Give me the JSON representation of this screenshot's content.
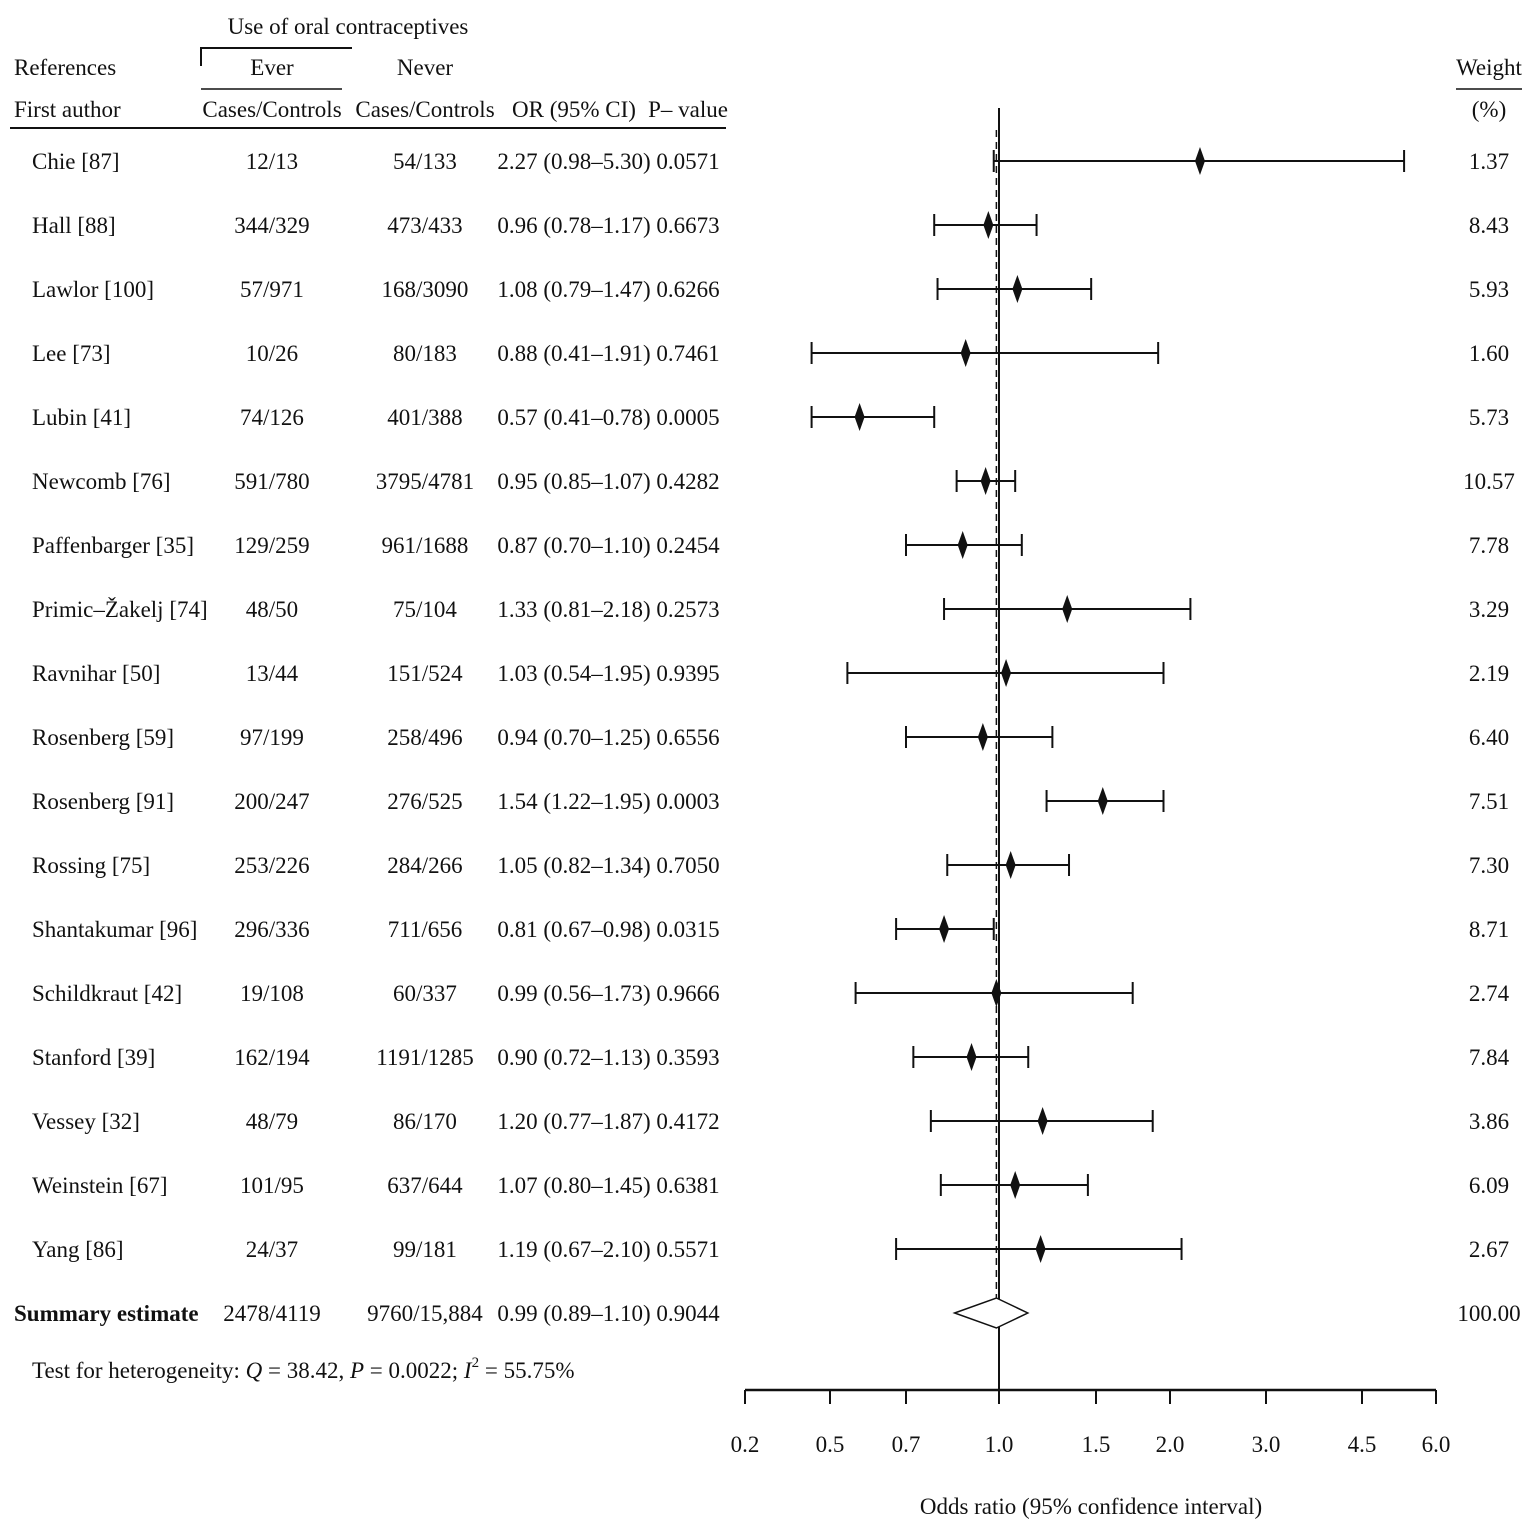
{
  "header": {
    "group_label": "Use of oral contraceptives",
    "references": "References",
    "first_author": "First author",
    "ever": "Ever",
    "never": "Never",
    "cases_controls_ever": "Cases/Controls",
    "cases_controls_never": "Cases/Controls",
    "or_ci": "OR (95% CI)",
    "p_value": "P– value",
    "weight": "Weight",
    "weight_unit": "(%)"
  },
  "heterogeneity": {
    "prefix": "Test for heterogeneity:",
    "q_sym": "Q",
    "q_val": " = 38.42,",
    "p_sym": "P",
    "p_val": " = 0.0022;",
    "i_sym": "I",
    "i_sup": "2",
    "i_val": " = 55.75%"
  },
  "chart_data": {
    "type": "forest",
    "xlabel": "Odds ratio (95% confidence interval)",
    "x_scale": "log",
    "x_ticks": [
      {
        "value": 0.2,
        "label": "0.2"
      },
      {
        "value": 0.5,
        "label": "0.5"
      },
      {
        "value": 0.7,
        "label": "0.7"
      },
      {
        "value": 1.0,
        "label": "1.0"
      },
      {
        "value": 1.5,
        "label": "1.5"
      },
      {
        "value": 2.0,
        "label": "2.0"
      },
      {
        "value": 3.0,
        "label": "3.0"
      },
      {
        "value": 4.5,
        "label": "4.5"
      },
      {
        "value": 6.0,
        "label": "6.0"
      }
    ],
    "xlim": [
      0.2,
      6.0
    ],
    "reference_line": 1.0,
    "summary_line": 0.99,
    "studies": [
      {
        "author": "Chie [87]",
        "ever": "12/13",
        "never": "54/133",
        "or_text": "2.27 (0.98–5.30)",
        "p": "0.0571",
        "weight": "1.37",
        "or": 2.27,
        "lo": 0.98,
        "hi": 5.3
      },
      {
        "author": "Hall [88]",
        "ever": "344/329",
        "never": "473/433",
        "or_text": "0.96 (0.78–1.17)",
        "p": "0.6673",
        "weight": "8.43",
        "or": 0.96,
        "lo": 0.78,
        "hi": 1.17
      },
      {
        "author": "Lawlor [100]",
        "ever": "57/971",
        "never": "168/3090",
        "or_text": "1.08 (0.79–1.47)",
        "p": "0.6266",
        "weight": "5.93",
        "or": 1.08,
        "lo": 0.79,
        "hi": 1.47
      },
      {
        "author": "Lee [73]",
        "ever": "10/26",
        "never": "80/183",
        "or_text": "0.88 (0.41–1.91)",
        "p": "0.7461",
        "weight": "1.60",
        "or": 0.88,
        "lo": 0.41,
        "hi": 1.91
      },
      {
        "author": "Lubin [41]",
        "ever": "74/126",
        "never": "401/388",
        "or_text": "0.57 (0.41–0.78)",
        "p": "0.0005",
        "weight": "5.73",
        "or": 0.57,
        "lo": 0.41,
        "hi": 0.78
      },
      {
        "author": "Newcomb [76]",
        "ever": "591/780",
        "never": "3795/4781",
        "or_text": "0.95 (0.85–1.07)",
        "p": "0.4282",
        "weight": "10.57",
        "or": 0.95,
        "lo": 0.85,
        "hi": 1.07
      },
      {
        "author": "Paffenbarger [35]",
        "ever": "129/259",
        "never": "961/1688",
        "or_text": "0.87 (0.70–1.10)",
        "p": "0.2454",
        "weight": "7.78",
        "or": 0.87,
        "lo": 0.7,
        "hi": 1.1
      },
      {
        "author": "Primic–Žakelj [74]",
        "ever": "48/50",
        "never": "75/104",
        "or_text": "1.33 (0.81–2.18)",
        "p": "0.2573",
        "weight": "3.29",
        "or": 1.33,
        "lo": 0.81,
        "hi": 2.18
      },
      {
        "author": "Ravnihar [50]",
        "ever": "13/44",
        "never": "151/524",
        "or_text": "1.03 (0.54–1.95)",
        "p": "0.9395",
        "weight": "2.19",
        "or": 1.03,
        "lo": 0.54,
        "hi": 1.95
      },
      {
        "author": "Rosenberg [59]",
        "ever": "97/199",
        "never": "258/496",
        "or_text": "0.94 (0.70–1.25)",
        "p": "0.6556",
        "weight": "6.40",
        "or": 0.94,
        "lo": 0.7,
        "hi": 1.25
      },
      {
        "author": "Rosenberg [91]",
        "ever": "200/247",
        "never": "276/525",
        "or_text": "1.54 (1.22–1.95)",
        "p": "0.0003",
        "weight": "7.51",
        "or": 1.54,
        "lo": 1.22,
        "hi": 1.95
      },
      {
        "author": "Rossing [75]",
        "ever": "253/226",
        "never": "284/266",
        "or_text": "1.05 (0.82–1.34)",
        "p": "0.7050",
        "weight": "7.30",
        "or": 1.05,
        "lo": 0.82,
        "hi": 1.34
      },
      {
        "author": "Shantakumar [96]",
        "ever": "296/336",
        "never": "711/656",
        "or_text": "0.81 (0.67–0.98)",
        "p": "0.0315",
        "weight": "8.71",
        "or": 0.81,
        "lo": 0.67,
        "hi": 0.98
      },
      {
        "author": "Schildkraut [42]",
        "ever": "19/108",
        "never": "60/337",
        "or_text": "0.99 (0.56–1.73)",
        "p": "0.9666",
        "weight": "2.74",
        "or": 0.99,
        "lo": 0.56,
        "hi": 1.73
      },
      {
        "author": "Stanford [39]",
        "ever": "162/194",
        "never": "1191/1285",
        "or_text": "0.90 (0.72–1.13)",
        "p": "0.3593",
        "weight": "7.84",
        "or": 0.9,
        "lo": 0.72,
        "hi": 1.13
      },
      {
        "author": "Vessey [32]",
        "ever": "48/79",
        "never": "86/170",
        "or_text": "1.20 (0.77–1.87)",
        "p": "0.4172",
        "weight": "3.86",
        "or": 1.2,
        "lo": 0.77,
        "hi": 1.87
      },
      {
        "author": "Weinstein [67]",
        "ever": "101/95",
        "never": "637/644",
        "or_text": "1.07 (0.80–1.45)",
        "p": "0.6381",
        "weight": "6.09",
        "or": 1.07,
        "lo": 0.8,
        "hi": 1.45
      },
      {
        "author": "Yang [86]",
        "ever": "24/37",
        "never": "99/181",
        "or_text": "1.19 (0.67–2.10)",
        "p": "0.5571",
        "weight": "2.67",
        "or": 1.19,
        "lo": 0.67,
        "hi": 2.1
      }
    ],
    "summary": {
      "author": "Summary estimate",
      "ever": "2478/4119",
      "never": "9760/15,884",
      "or_text": "0.99 (0.89–1.10)",
      "p": "0.9044",
      "weight": "100.00",
      "or": 0.99,
      "lo": 0.89,
      "hi": 1.1
    }
  }
}
